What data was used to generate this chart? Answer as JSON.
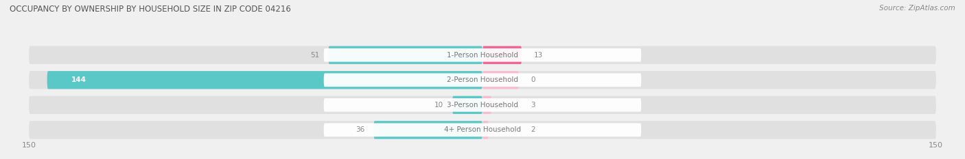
{
  "title": "OCCUPANCY BY OWNERSHIP BY HOUSEHOLD SIZE IN ZIP CODE 04216",
  "source": "Source: ZipAtlas.com",
  "categories": [
    "1-Person Household",
    "2-Person Household",
    "3-Person Household",
    "4+ Person Household"
  ],
  "owner_values": [
    51,
    144,
    10,
    36
  ],
  "renter_values": [
    13,
    0,
    3,
    2
  ],
  "owner_color": "#5bc8c8",
  "renter_color": "#f06292",
  "renter_color_light": "#f8bbd0",
  "background_color": "#f0f0f0",
  "bar_bg_color": "#e0e0e0",
  "axis_limit": 150,
  "label_color": "#888888",
  "title_color": "#555555",
  "figsize": [
    14.06,
    2.33
  ],
  "dpi": 100
}
